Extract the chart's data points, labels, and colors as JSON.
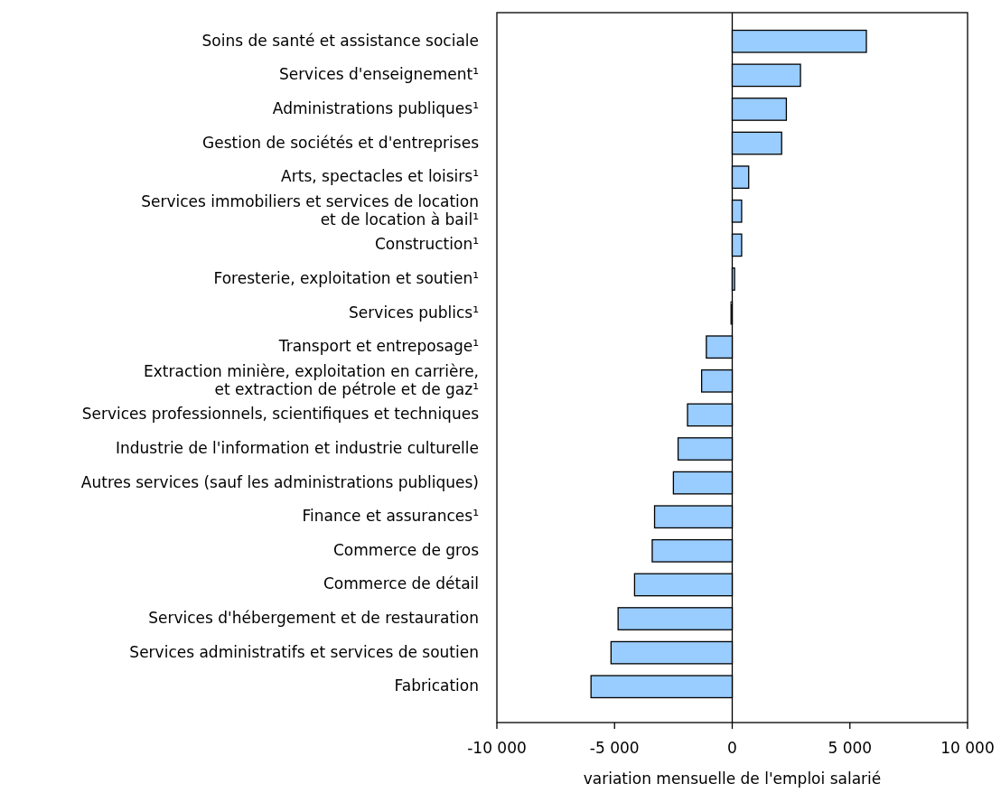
{
  "chart_data": {
    "type": "bar",
    "orientation": "horizontal",
    "xlabel": "variation mensuelle de l'emploi salarié",
    "categories": [
      "Soins de santé et assistance sociale",
      "Services d'enseignement¹",
      "Administrations publiques¹",
      "Gestion de sociétés et d'entreprises",
      "Arts, spectacles et loisirs¹",
      "Services immobiliers et services de location\net de location à bail¹",
      "Construction¹",
      "Foresterie, exploitation et soutien¹",
      "Services publics¹",
      "Transport et entreposage¹",
      "Extraction minière, exploitation en carrière,\net extraction de pétrole et de gaz¹",
      "Services professionnels, scientifiques et techniques",
      "Industrie de l'information et industrie culturelle",
      "Autres services (sauf les administrations publiques)",
      "Finance et assurances¹",
      "Commerce de gros",
      "Commerce de détail",
      "Services d'hébergement et de restauration",
      "Services administratifs et services de soutien",
      "Fabrication"
    ],
    "values": [
      5700,
      2900,
      2300,
      2100,
      700,
      400,
      400,
      100,
      -50,
      -1100,
      -1300,
      -1900,
      -2300,
      -2500,
      -3300,
      -3400,
      -4150,
      -4850,
      -5150,
      -6000
    ],
    "color": "#99ccff",
    "xlim": [
      -10000,
      10000
    ],
    "xticks": [
      {
        "value": -10000,
        "label": "-10 000"
      },
      {
        "value": -5000,
        "label": "-5 000"
      },
      0,
      {
        "value": 5000,
        "label": "5 000"
      },
      {
        "value": 10000,
        "label": "10 000"
      }
    ]
  }
}
